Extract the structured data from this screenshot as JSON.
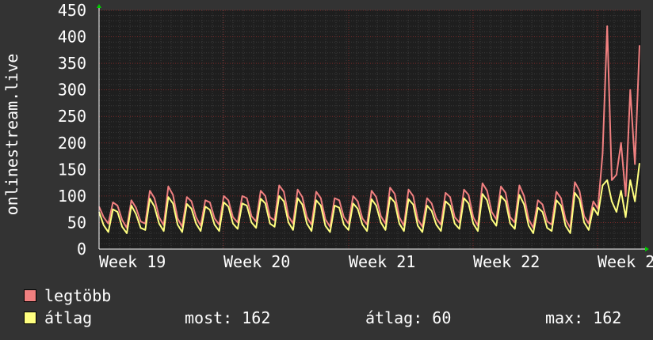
{
  "chart_data": {
    "type": "line",
    "ylabel": "onlinestream.live",
    "ylim": [
      0,
      450
    ],
    "yticks": [
      0,
      50,
      100,
      150,
      200,
      250,
      300,
      350,
      400,
      450
    ],
    "xticks": [
      "Week 19",
      "Week 20",
      "Week 21",
      "Week 22",
      "Week 2"
    ],
    "grid": true,
    "legend_position": "bottom-left",
    "series": [
      {
        "name": "legtöbb",
        "color": "#f08080",
        "values": [
          80,
          60,
          48,
          88,
          82,
          55,
          40,
          92,
          78,
          52,
          48,
          110,
          96,
          60,
          45,
          118,
          102,
          58,
          42,
          98,
          90,
          60,
          44,
          92,
          88,
          58,
          46,
          100,
          92,
          60,
          50,
          100,
          96,
          62,
          52,
          110,
          100,
          60,
          54,
          120,
          108,
          62,
          48,
          112,
          98,
          60,
          46,
          108,
          96,
          56,
          42,
          96,
          92,
          60,
          48,
          100,
          90,
          58,
          46,
          110,
          98,
          62,
          48,
          116,
          104,
          60,
          44,
          112,
          100,
          56,
          42,
          96,
          86,
          58,
          46,
          106,
          98,
          60,
          50,
          112,
          102,
          60,
          44,
          124,
          110,
          70,
          56,
          118,
          106,
          60,
          50,
          120,
          100,
          56,
          40,
          92,
          84,
          52,
          46,
          108,
          96,
          56,
          40,
          126,
          110,
          62,
          48,
          90,
          76,
          180,
          420,
          130,
          140,
          200,
          100,
          300,
          160,
          384
        ]
      },
      {
        "name": "átlag",
        "color": "#ffff80",
        "values": [
          70,
          45,
          32,
          75,
          70,
          42,
          30,
          82,
          66,
          40,
          36,
          95,
          80,
          48,
          34,
          98,
          86,
          46,
          32,
          85,
          76,
          48,
          34,
          80,
          74,
          46,
          34,
          88,
          80,
          48,
          38,
          86,
          82,
          50,
          40,
          95,
          86,
          48,
          42,
          100,
          90,
          50,
          36,
          96,
          84,
          48,
          34,
          92,
          82,
          44,
          32,
          82,
          78,
          46,
          36,
          86,
          76,
          46,
          34,
          94,
          82,
          50,
          36,
          98,
          88,
          48,
          34,
          94,
          84,
          44,
          32,
          82,
          72,
          46,
          34,
          90,
          82,
          48,
          38,
          96,
          86,
          48,
          34,
          104,
          92,
          56,
          44,
          100,
          90,
          48,
          38,
          102,
          84,
          44,
          30,
          78,
          70,
          40,
          34,
          92,
          82,
          44,
          30,
          106,
          94,
          50,
          36,
          78,
          64,
          120,
          130,
          90,
          70,
          110,
          60,
          130,
          90,
          162
        ]
      }
    ],
    "stats": [
      {
        "label": "most:",
        "value": "162"
      },
      {
        "label": "átlag:",
        "value": "60"
      },
      {
        "label": "max:",
        "value": "162"
      }
    ]
  }
}
